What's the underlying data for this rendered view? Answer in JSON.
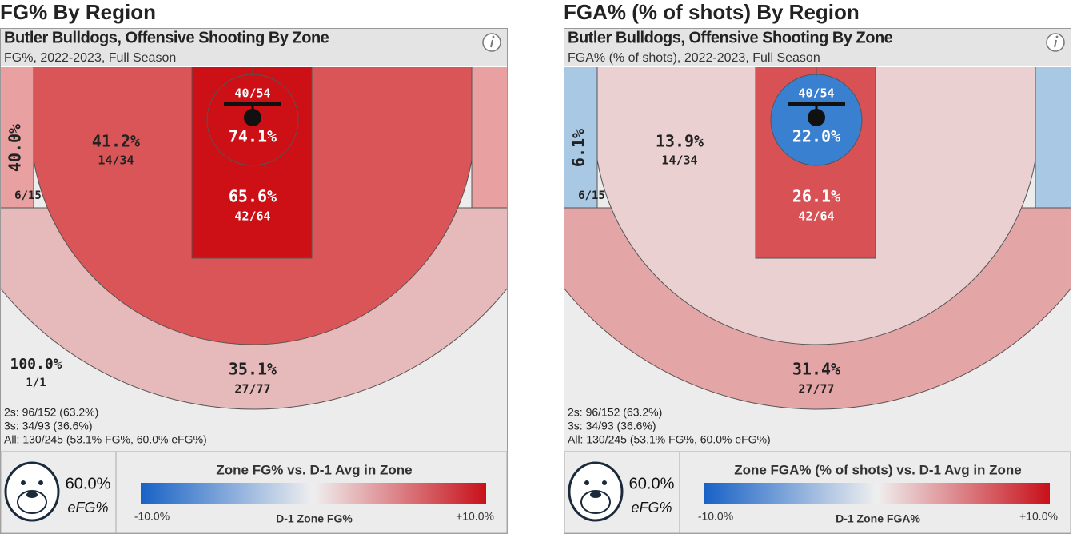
{
  "panels": [
    {
      "title": "FG% By Region",
      "header": "Butler Bulldogs, Offensive Shooting By Zone",
      "subtitle": "FG%, 2022-2023, Full Season",
      "fills": {
        "background": "#ececec",
        "outer_band": "#e6babb",
        "corners": "#e8a0a0",
        "mid_range": "#d95557",
        "paint": "#cc1016",
        "rim": "#cc1016"
      },
      "zones": {
        "corner": {
          "pct": "40.0%",
          "shots": "6/15"
        },
        "mid_range": {
          "pct": "41.2%",
          "shots": "14/34"
        },
        "rim": {
          "pct": "74.1%",
          "shots": "40/54"
        },
        "paint": {
          "pct": "65.6%",
          "shots": "42/64"
        },
        "long_two": {
          "pct": "100.0%",
          "shots": "1/1"
        },
        "three": {
          "pct": "35.1%",
          "shots": "27/77"
        }
      },
      "summary": [
        "2s: 96/152 (63.2%)",
        "3s: 34/93 (36.6%)",
        "All: 130/245 (53.1% FG%, 60.0% eFG%)"
      ],
      "efg": "60.0%",
      "efg_label": "eFG%",
      "legend_title": "Zone FG% vs. D-1 Avg in Zone",
      "legend_min": "-10.0%",
      "legend_max": "+10.0%",
      "legend_label": "D-1 Zone FG%"
    },
    {
      "title": "FGA% (% of shots) By Region",
      "header": "Butler Bulldogs, Offensive Shooting By Zone",
      "subtitle": "FGA% (% of shots), 2022-2023, Full Season",
      "fills": {
        "background": "#ececec",
        "outer_band": "#e4a5a6",
        "corners": "#a9c8e4",
        "mid_range": "#ebd0d2",
        "paint": "#d85255",
        "rim": "#3a80d0"
      },
      "zones": {
        "corner": {
          "pct": "6.1%",
          "shots": "6/15"
        },
        "mid_range": {
          "pct": "13.9%",
          "shots": "14/34"
        },
        "rim": {
          "pct": "22.0%",
          "shots": "40/54"
        },
        "paint": {
          "pct": "26.1%",
          "shots": "42/64"
        },
        "three": {
          "pct": "31.4%",
          "shots": "27/77"
        }
      },
      "summary": [
        "2s: 96/152 (63.2%)",
        "3s: 34/93 (36.6%)",
        "All: 130/245 (53.1% FG%, 60.0% eFG%)"
      ],
      "efg": "60.0%",
      "efg_label": "eFG%",
      "legend_title": "Zone FGA% (% of shots) vs. D-1 Avg in Zone",
      "legend_min": "-10.0%",
      "legend_max": "+10.0%",
      "legend_label": "D-1 Zone FGA%"
    }
  ]
}
